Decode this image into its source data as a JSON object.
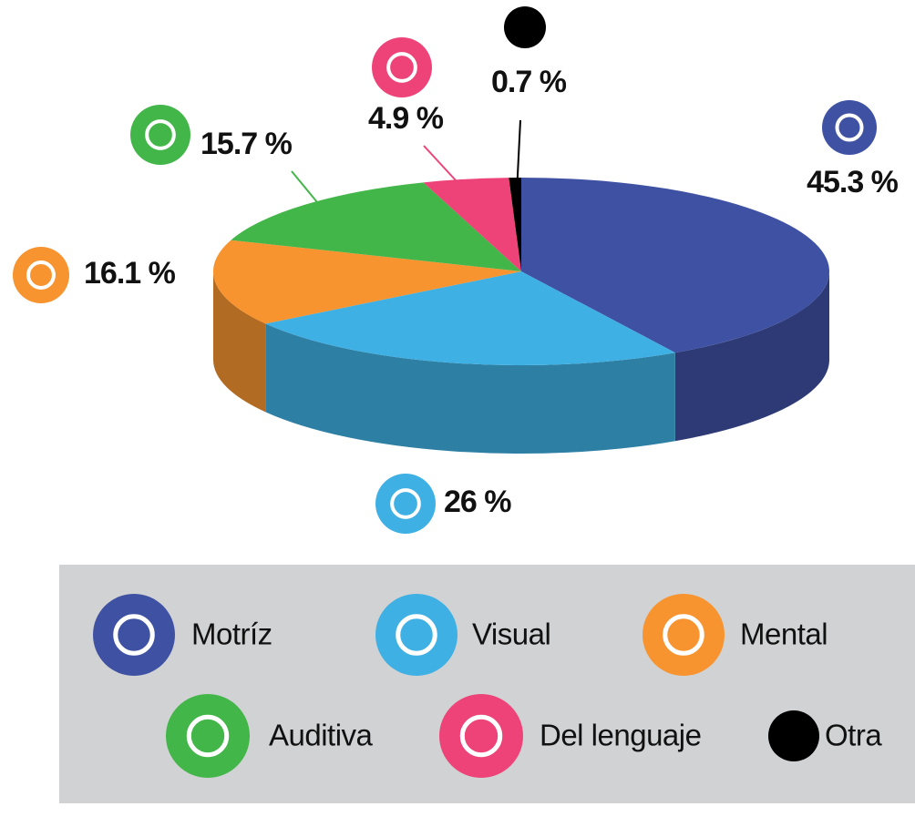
{
  "chart_data": {
    "type": "pie",
    "categories": [
      "Motríz",
      "Visual",
      "Mental",
      "Auditiva",
      "Del lenguaje",
      "Otra"
    ],
    "values": [
      45.3,
      26,
      16.1,
      15.7,
      4.9,
      0.7
    ],
    "value_labels": [
      "45.3 %",
      "26 %",
      "16.1 %",
      "15.7 %",
      "4.9 %",
      "0.7 %"
    ],
    "colors": [
      "#3f51a3",
      "#3fb0e4",
      "#f7942f",
      "#43b649",
      "#ee4378",
      "#000000"
    ],
    "legend": "bottom"
  }
}
